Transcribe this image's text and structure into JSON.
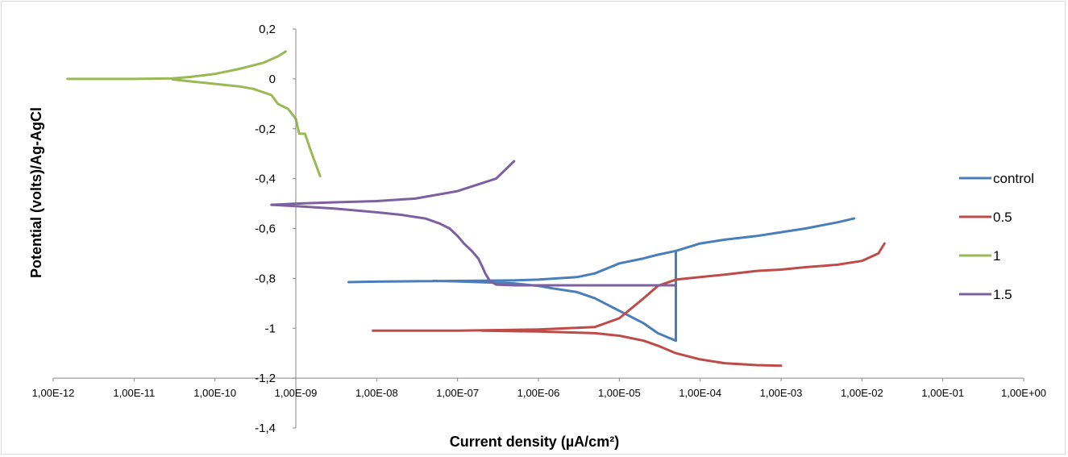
{
  "chart_data": {
    "type": "line",
    "title": "",
    "xlabel": "Current density (µA/cm²)",
    "ylabel": "Potential (volts)/Ag-AgCl",
    "x_scale": "log",
    "xlim": [
      1e-12,
      1
    ],
    "ylim": [
      -1.4,
      0.2
    ],
    "x_ticks": [
      "1,00E-12",
      "1,00E-11",
      "1,00E-10",
      "1,00E-09",
      "1,00E-08",
      "1,00E-07",
      "1,00E-06",
      "1,00E-05",
      "1,00E-04",
      "1,00E-03",
      "1,00E-02",
      "1,00E-01",
      "1,00E+00"
    ],
    "y_ticks": [
      "0,2",
      "0",
      "-0,2",
      "-0,4",
      "-0,6",
      "-0,8",
      "-1",
      "-1,2",
      "-1,4"
    ],
    "y_tick_values": [
      0.2,
      0,
      -0.2,
      -0.4,
      -0.6,
      -0.8,
      -1,
      -1.2,
      -1.4
    ],
    "x_axis_crosses_y_at": -1.2,
    "y_axis_crosses_x_at": 1e-09,
    "grid": false,
    "legend_position": "right",
    "series": [
      {
        "name": "control",
        "color": "#4a7ebb",
        "x": [
          4.5e-09,
          1e-08,
          1e-07,
          5e-07,
          1e-06,
          3e-06,
          5e-06,
          1e-05,
          2e-05,
          3e-05,
          5e-05,
          5e-05,
          3e-05,
          2e-05,
          1e-05,
          5e-06,
          3e-06,
          1.5e-06,
          1e-06,
          5e-07,
          1e-07,
          5e-08
        ],
        "y": [
          -0.815,
          -0.813,
          -0.81,
          -0.808,
          -0.805,
          -0.795,
          -0.78,
          -0.74,
          -0.72,
          -0.705,
          -0.69,
          -1.05,
          -1.02,
          -0.98,
          -0.93,
          -0.88,
          -0.855,
          -0.84,
          -0.83,
          -0.82,
          -0.812,
          -0.81
        ]
      },
      {
        "name": "control",
        "color": "#4a7ebb",
        "x": [
          5e-05,
          0.0001,
          0.0002,
          0.0005,
          0.001,
          0.002,
          0.005,
          0.008
        ],
        "y": [
          -0.69,
          -0.66,
          -0.645,
          -0.63,
          -0.615,
          -0.6,
          -0.575,
          -0.56
        ]
      },
      {
        "name": "0.5",
        "color": "#be4b48",
        "x": [
          9e-09,
          1e-08,
          1e-07,
          1e-06,
          5e-06,
          1e-05,
          2e-05,
          3e-05,
          5e-05,
          0.0001,
          0.0002,
          0.0005,
          0.001,
          0.002,
          0.005,
          0.01,
          0.016,
          0.019
        ],
        "y": [
          -1.01,
          -1.01,
          -1.01,
          -1.005,
          -0.995,
          -0.96,
          -0.88,
          -0.83,
          -0.805,
          -0.795,
          -0.785,
          -0.77,
          -0.765,
          -0.755,
          -0.745,
          -0.73,
          -0.7,
          -0.66
        ]
      },
      {
        "name": "0.5",
        "color": "#be4b48",
        "x": [
          2e-07,
          1e-06,
          5e-06,
          1e-05,
          2e-05,
          3e-05,
          5e-05,
          0.0001,
          0.0002,
          0.0005,
          0.001
        ],
        "y": [
          -1.01,
          -1.013,
          -1.02,
          -1.03,
          -1.05,
          -1.07,
          -1.1,
          -1.125,
          -1.14,
          -1.148,
          -1.15
        ]
      },
      {
        "name": "1",
        "color": "#98b954",
        "x": [
          1.5e-12,
          1e-11,
          3e-11,
          5e-11,
          1e-10,
          2e-10,
          4e-10,
          6e-10,
          7.5e-10
        ],
        "y": [
          0.0,
          0.0,
          0.002,
          0.008,
          0.02,
          0.04,
          0.065,
          0.09,
          0.11
        ]
      },
      {
        "name": "1",
        "color": "#98b954",
        "x": [
          3e-11,
          5e-11,
          1e-10,
          2e-10,
          3e-10,
          5e-10,
          6e-10,
          8e-10,
          1e-09,
          1.1e-09,
          1.3e-09,
          1.5e-09,
          1.8e-09,
          2e-09
        ],
        "y": [
          -0.002,
          -0.01,
          -0.02,
          -0.03,
          -0.04,
          -0.065,
          -0.1,
          -0.12,
          -0.16,
          -0.22,
          -0.22,
          -0.28,
          -0.35,
          -0.39
        ]
      },
      {
        "name": "1.5",
        "color": "#7d60a0",
        "x": [
          5e-10,
          1e-09,
          3e-09,
          1e-08,
          2e-08,
          4e-08,
          6e-08,
          8e-08,
          1e-07,
          1.2e-07,
          1.5e-07,
          1.8e-07,
          2e-07,
          2.2e-07,
          2.5e-07,
          3e-07,
          5e-07,
          1e-06,
          3e-06,
          1e-05,
          5e-05
        ],
        "y": [
          -0.505,
          -0.51,
          -0.52,
          -0.535,
          -0.545,
          -0.56,
          -0.58,
          -0.6,
          -0.63,
          -0.66,
          -0.69,
          -0.72,
          -0.75,
          -0.78,
          -0.81,
          -0.825,
          -0.828,
          -0.828,
          -0.828,
          -0.828,
          -0.828
        ]
      },
      {
        "name": "1.5",
        "color": "#7d60a0",
        "x": [
          5e-10,
          1e-09,
          3e-09,
          1e-08,
          3e-08,
          1e-07,
          3e-07,
          5e-07
        ],
        "y": [
          -0.505,
          -0.5,
          -0.495,
          -0.49,
          -0.48,
          -0.45,
          -0.4,
          -0.33
        ]
      }
    ],
    "legend": [
      {
        "name": "control",
        "color": "#4a7ebb"
      },
      {
        "name": "0.5",
        "color": "#be4b48"
      },
      {
        "name": "1",
        "color": "#98b954"
      },
      {
        "name": "1.5",
        "color": "#7d60a0"
      }
    ]
  }
}
